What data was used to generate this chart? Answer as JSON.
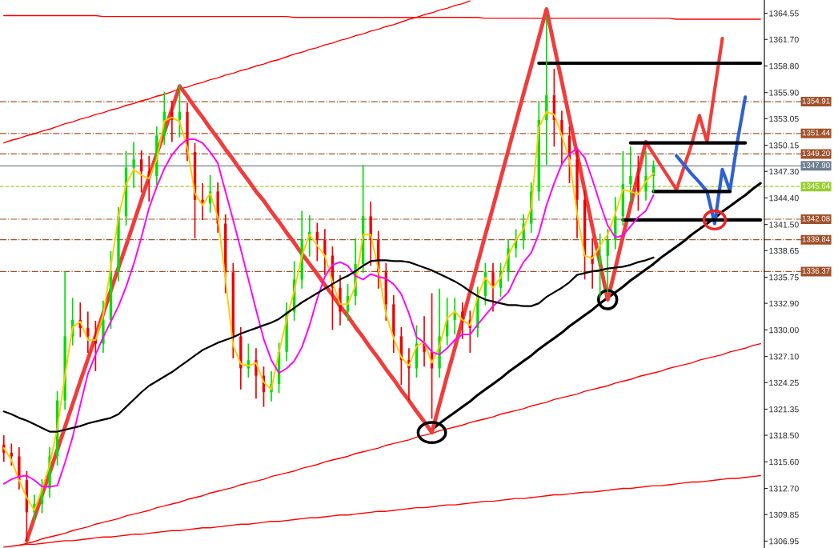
{
  "chart_data": {
    "type": "candlestick",
    "categories": [
      null,
      null,
      null,
      null,
      null,
      null,
      null,
      null,
      null,
      null,
      null,
      null,
      null,
      null,
      null,
      null,
      null,
      null,
      null,
      null,
      null,
      null,
      null,
      null,
      null,
      null,
      null,
      null,
      null,
      null,
      null,
      null,
      null,
      null,
      null,
      null,
      null,
      null,
      null,
      null,
      null,
      null,
      null,
      null,
      null,
      null,
      null,
      null,
      null,
      null,
      null,
      null,
      null,
      null,
      null,
      null,
      null,
      null,
      null,
      null,
      null,
      null,
      null,
      null,
      null,
      null,
      null,
      null,
      null,
      null,
      null,
      null,
      null,
      null,
      null,
      null,
      null,
      null,
      null,
      null,
      null,
      null,
      null,
      null,
      null,
      null,
      null,
      null,
      null,
      null,
      null,
      null,
      null,
      null,
      null,
      null,
      null,
      null,
      null,
      null
    ],
    "ohlc": [
      [
        1317.5,
        1318.5,
        1315.6,
        1316.6
      ],
      [
        1316.6,
        1317.6,
        1315.2,
        1316.2
      ],
      [
        1316.2,
        1317.2,
        1312.6,
        1313.6
      ],
      [
        1313.6,
        1314.6,
        1307.0,
        1310.1
      ],
      [
        1310.1,
        1312.0,
        1309.1,
        1311.0
      ],
      [
        1311.0,
        1313.7,
        1310.0,
        1312.7
      ],
      [
        1312.7,
        1317.2,
        1311.7,
        1316.2
      ],
      [
        1316.2,
        1323.3,
        1315.2,
        1322.3
      ],
      [
        1322.3,
        1336.4,
        1321.3,
        1329.3
      ],
      [
        1329.3,
        1333.5,
        1328.3,
        1331.1
      ],
      [
        1331.1,
        1333.0,
        1329.2,
        1330.2
      ],
      [
        1330.2,
        1332.0,
        1327.5,
        1329.3
      ],
      [
        1329.3,
        1331.0,
        1325.5,
        1328.5
      ],
      [
        1328.5,
        1333.2,
        1327.5,
        1331.1
      ],
      [
        1331.1,
        1338.6,
        1330.1,
        1336.3
      ],
      [
        1336.3,
        1343.4,
        1335.3,
        1342.4
      ],
      [
        1342.4,
        1349.5,
        1341.4,
        1347.7
      ],
      [
        1347.7,
        1350.5,
        1345.5,
        1348.6
      ],
      [
        1348.6,
        1349.6,
        1345.0,
        1347.3
      ],
      [
        1347.3,
        1349.0,
        1344.0,
        1346.8
      ],
      [
        1346.8,
        1352.2,
        1345.8,
        1351.2
      ],
      [
        1351.2,
        1356.0,
        1350.2,
        1353.8
      ],
      [
        1353.8,
        1355.0,
        1350.5,
        1352.9
      ],
      [
        1352.9,
        1356.7,
        1351.0,
        1353.8
      ],
      [
        1353.8,
        1354.8,
        1348.4,
        1349.4
      ],
      [
        1349.4,
        1350.4,
        1340.0,
        1344.2
      ],
      [
        1344.2,
        1346.0,
        1342.0,
        1343.8
      ],
      [
        1343.8,
        1346.9,
        1342.8,
        1345.1
      ],
      [
        1345.1,
        1346.1,
        1340.6,
        1341.6
      ],
      [
        1341.6,
        1342.6,
        1334.0,
        1336.3
      ],
      [
        1336.3,
        1337.3,
        1326.9,
        1329.3
      ],
      [
        1329.3,
        1330.3,
        1323.5,
        1325.8
      ],
      [
        1325.8,
        1328.5,
        1324.8,
        1326.7
      ],
      [
        1326.7,
        1328.0,
        1322.5,
        1325.0
      ],
      [
        1325.0,
        1326.0,
        1321.6,
        1323.2
      ],
      [
        1323.2,
        1325.5,
        1322.2,
        1324.1
      ],
      [
        1324.1,
        1328.6,
        1323.1,
        1327.6
      ],
      [
        1327.6,
        1333.0,
        1326.6,
        1332.0
      ],
      [
        1332.0,
        1337.5,
        1331.0,
        1335.5
      ],
      [
        1335.5,
        1343.0,
        1334.5,
        1339.8
      ],
      [
        1339.8,
        1342.5,
        1338.0,
        1340.7
      ],
      [
        1340.7,
        1341.7,
        1337.5,
        1339.8
      ],
      [
        1339.8,
        1341.0,
        1336.0,
        1338.1
      ],
      [
        1338.1,
        1339.1,
        1330.0,
        1334.6
      ],
      [
        1334.6,
        1336.0,
        1330.5,
        1332.0
      ],
      [
        1332.0,
        1335.0,
        1331.0,
        1333.7
      ],
      [
        1333.7,
        1340.0,
        1332.7,
        1337.2
      ],
      [
        1337.2,
        1348.0,
        1336.2,
        1342.4
      ],
      [
        1342.4,
        1344.0,
        1337.0,
        1339.8
      ],
      [
        1339.8,
        1340.8,
        1334.5,
        1336.3
      ],
      [
        1336.3,
        1337.3,
        1331.0,
        1332.8
      ],
      [
        1332.8,
        1333.8,
        1327.5,
        1329.3
      ],
      [
        1329.3,
        1330.3,
        1324.0,
        1326.7
      ],
      [
        1326.7,
        1328.0,
        1322.3,
        1325.8
      ],
      [
        1325.8,
        1330.5,
        1324.8,
        1328.5
      ],
      [
        1328.5,
        1331.5,
        1326.0,
        1327.6
      ],
      [
        1327.6,
        1334.0,
        1320.3,
        1325.8
      ],
      [
        1325.8,
        1334.5,
        1324.8,
        1329.3
      ],
      [
        1329.3,
        1333.5,
        1328.3,
        1331.1
      ],
      [
        1331.1,
        1333.5,
        1329.5,
        1332.0
      ],
      [
        1332.0,
        1333.0,
        1329.0,
        1331.1
      ],
      [
        1331.1,
        1332.1,
        1327.5,
        1330.2
      ],
      [
        1330.2,
        1334.7,
        1329.2,
        1333.7
      ],
      [
        1333.7,
        1337.3,
        1332.7,
        1336.3
      ],
      [
        1336.3,
        1337.3,
        1332.0,
        1334.6
      ],
      [
        1334.6,
        1337.3,
        1333.6,
        1336.3
      ],
      [
        1336.3,
        1339.9,
        1335.3,
        1338.9
      ],
      [
        1338.9,
        1341.0,
        1337.9,
        1339.8
      ],
      [
        1339.8,
        1342.6,
        1338.8,
        1341.6
      ],
      [
        1341.6,
        1346.1,
        1340.6,
        1345.1
      ],
      [
        1345.1,
        1355.0,
        1344.1,
        1352.9
      ],
      [
        1352.9,
        1364.2,
        1348.0,
        1355.6
      ],
      [
        1355.6,
        1358.5,
        1350.0,
        1352.9
      ],
      [
        1352.9,
        1353.9,
        1348.0,
        1351.2
      ],
      [
        1351.2,
        1352.2,
        1346.0,
        1348.6
      ],
      [
        1348.6,
        1349.6,
        1340.0,
        1344.2
      ],
      [
        1344.2,
        1345.2,
        1335.5,
        1338.1
      ],
      [
        1338.1,
        1340.0,
        1334.5,
        1337.2
      ],
      [
        1337.2,
        1340.5,
        1333.5,
        1338.1
      ],
      [
        1338.1,
        1341.0,
        1334.0,
        1339.8
      ],
      [
        1339.8,
        1344.5,
        1338.8,
        1342.4
      ],
      [
        1342.4,
        1349.5,
        1341.4,
        1345.9
      ],
      [
        1345.9,
        1350.0,
        1344.0,
        1346.8
      ],
      [
        1346.8,
        1349.0,
        1343.0,
        1345.1
      ],
      [
        1345.1,
        1349.5,
        1344.1,
        1346.8
      ],
      [
        1346.8,
        1348.5,
        1345.0,
        1347.9
      ],
      null,
      null,
      null,
      null,
      null,
      null,
      null,
      null,
      null,
      null,
      null,
      null,
      null,
      null
    ],
    "series": [
      {
        "type": "line",
        "color": "#ffcc00",
        "values": [
          1317.1,
          1315.8,
          1313.6,
          1311.7,
          1310.3,
          1312.6,
          1315.3,
          1319.3,
          1325.0,
          1330.3,
          1330.9,
          1328.9,
          1328.9,
          1331.6,
          1336.9,
          1342.3,
          1345.9,
          1347.5,
          1346.9,
          1346.5,
          1348.6,
          1352.8,
          1353.2,
          1352.7,
          1349.9,
          1344.9,
          1343.6,
          1344.9,
          1342.3,
          1335.5,
          1328.3,
          1326.3,
          1326.1,
          1326.4,
          1324.3,
          1323.5,
          1327.6,
          1331.1,
          1334.3,
          1338.1,
          1340.4,
          1339.2,
          1338.1,
          1335.2,
          1332.8,
          1332.8,
          1334.8,
          1340.4,
          1340.4,
          1336.6,
          1331.7,
          1329.1,
          1327.0,
          1326.1,
          1328.2,
          1328.7,
          1326.4,
          1328.2,
          1331.3,
          1332.0,
          1331.1,
          1330.5,
          1333.7,
          1335.7,
          1334.6,
          1335.7,
          1338.1,
          1339.8,
          1341.0,
          1343.3,
          1352.1,
          1353.8,
          1353.5,
          1351.2,
          1348.6,
          1342.7,
          1338.1,
          1337.8,
          1339.2,
          1340.4,
          1342.7,
          1345.3,
          1345.1,
          1344.8,
          1346.2,
          1347.1,
          null,
          null,
          null,
          null,
          null,
          null,
          null,
          null,
          null,
          null,
          null,
          null,
          null,
          null
        ]
      },
      {
        "type": "line",
        "color": "#ff00ff",
        "values": [
          1313.2,
          1313.7,
          1314.0,
          1314.1,
          1313.6,
          1312.9,
          1312.9,
          1313.0,
          1315.5,
          1318.3,
          1321.8,
          1325.2,
          1327.3,
          1329.2,
          1330.9,
          1332.6,
          1334.7,
          1337.2,
          1340.1,
          1343.3,
          1345.6,
          1347.6,
          1349.1,
          1350.1,
          1350.8,
          1350.8,
          1350.4,
          1349.4,
          1348.2,
          1345.1,
          1342.0,
          1338.8,
          1335.5,
          1332.2,
          1329.0,
          1326.7,
          1325.3,
          1325.8,
          1326.6,
          1328.1,
          1330.5,
          1333.4,
          1335.8,
          1337.1,
          1337.4,
          1337.0,
          1335.9,
          1335.5,
          1336.1,
          1335.8,
          1335.6,
          1335.0,
          1333.9,
          1331.8,
          1329.2,
          1328.6,
          1327.6,
          1327.3,
          1328.0,
          1328.9,
          1329.5,
          1329.5,
          1330.6,
          1331.6,
          1332.6,
          1333.3,
          1334.1,
          1335.9,
          1337.4,
          1338.4,
          1340.5,
          1343.6,
          1346.0,
          1348.1,
          1349.2,
          1349.8,
          1348.8,
          1346.4,
          1343.8,
          1341.4,
          1340.1,
          1340.3,
          1341.3,
          1342.3,
          1343.0,
          1344.7,
          null,
          null,
          null,
          null,
          null,
          null,
          null,
          null,
          null,
          null,
          null,
          null,
          null,
          null
        ]
      },
      {
        "type": "line",
        "color": "#000000",
        "values": [
          1321.1,
          1320.8,
          1320.4,
          1320.1,
          1319.7,
          1319.3,
          1318.9,
          1318.9,
          1319.1,
          1319.3,
          1319.5,
          1319.8,
          1320.0,
          1320.2,
          1320.4,
          1320.8,
          1321.6,
          1322.4,
          1323.2,
          1323.9,
          1324.4,
          1324.9,
          1325.4,
          1326.0,
          1326.6,
          1327.2,
          1327.8,
          1328.2,
          1328.6,
          1328.9,
          1329.2,
          1329.6,
          1329.9,
          1330.2,
          1330.5,
          1330.8,
          1331.2,
          1331.8,
          1332.4,
          1333.0,
          1333.5,
          1334.0,
          1334.5,
          1335.0,
          1335.5,
          1335.9,
          1336.4,
          1337.0,
          1337.5,
          1337.6,
          1337.6,
          1337.5,
          1337.5,
          1337.4,
          1337.1,
          1336.8,
          1336.5,
          1336.1,
          1335.7,
          1335.3,
          1334.8,
          1334.2,
          1333.7,
          1333.3,
          1333.1,
          1332.9,
          1332.7,
          1332.7,
          1332.6,
          1332.6,
          1332.9,
          1333.6,
          1334.1,
          1334.6,
          1335.2,
          1336.0,
          1336.2,
          1336.4,
          1336.5,
          1336.7,
          1336.8,
          1336.9,
          1337.1,
          1337.4,
          1337.6,
          1337.9,
          null,
          null,
          null,
          null,
          null,
          null,
          null,
          null,
          null,
          null,
          null,
          null,
          null,
          null
        ]
      },
      {
        "type": "line",
        "color": "#ff0000",
        "values": [
          1350.4,
          1350.7,
          1350.9,
          1351.2,
          1351.4,
          1351.7,
          1351.9,
          1352.2,
          1352.5,
          1352.7,
          1353.0,
          1353.2,
          1353.5,
          1353.7,
          1354.0,
          1354.2,
          1354.5,
          1354.7,
          1355.0,
          1355.2,
          1355.5,
          1355.7,
          1356.0,
          1356.3,
          1356.5,
          1356.8,
          1357.0,
          1357.3,
          1357.5,
          1357.8,
          1358.0,
          1358.3,
          1358.5,
          1358.8,
          1359.0,
          1359.3,
          1359.5,
          1359.8,
          1360.1,
          1360.3,
          1360.6,
          1360.8,
          1361.1,
          1361.3,
          1361.6,
          1361.8,
          1362.1,
          1362.3,
          1362.6,
          1362.8,
          1363.1,
          1363.3,
          1363.6,
          1363.9,
          1364.1,
          1364.4,
          1364.6,
          1364.9,
          1365.1,
          1365.4,
          1365.6,
          1365.9,
          null,
          null,
          null,
          null,
          null,
          null,
          null,
          null,
          null,
          null,
          null,
          null,
          null,
          null,
          null,
          null,
          null,
          null,
          null,
          null,
          null,
          null,
          null,
          null,
          null,
          null,
          null,
          null,
          null,
          null,
          null,
          null,
          null,
          null,
          null,
          null,
          null,
          null
        ]
      },
      {
        "type": "line",
        "color": "#ff0000",
        "values": [
          1364.3,
          1364.3,
          1364.3,
          1364.3,
          1364.3,
          1364.3,
          1364.3,
          1364.3,
          1364.3,
          1364.3,
          1364.3,
          1364.3,
          1364.3,
          1364.2,
          1364.2,
          1364.2,
          1364.2,
          1364.2,
          1364.2,
          1364.2,
          1364.2,
          1364.2,
          1364.2,
          1364.2,
          1364.2,
          1364.2,
          1364.2,
          1364.2,
          1364.2,
          1364.2,
          1364.2,
          1364.2,
          1364.2,
          1364.2,
          1364.2,
          1364.2,
          1364.2,
          1364.2,
          1364.1,
          1364.1,
          1364.1,
          1364.1,
          1364.1,
          1364.1,
          1364.1,
          1364.1,
          1364.1,
          1364.1,
          1364.1,
          1364.1,
          1364.1,
          1364.1,
          1364.1,
          1364.1,
          1364.1,
          1364.1,
          1364.1,
          1364.1,
          1364.1,
          1364.1,
          1364.1,
          1364.1,
          1364.1,
          1364.0,
          1364.0,
          1364.0,
          1364.0,
          1364.0,
          1364.0,
          1364.0,
          1364.0,
          1364.0,
          1364.0,
          1364.0,
          1364.0,
          1364.0,
          1364.0,
          1364.0,
          1364.0,
          1364.0,
          1364.0,
          1364.0,
          1364.0,
          1364.0,
          1364.0,
          1364.0,
          1364.0,
          1364.0,
          1363.9,
          1363.9,
          1363.9,
          1363.9,
          1363.9,
          1363.9,
          1363.9,
          1363.9,
          1363.9,
          1363.9,
          1363.9,
          1363.9
        ]
      },
      {
        "type": "line",
        "color": "#ff0000",
        "values": [
          null,
          null,
          1306.5,
          1306.7,
          1306.9,
          1307.2,
          1307.4,
          1307.6,
          1307.8,
          1308.1,
          1308.3,
          1308.5,
          1308.8,
          1309.0,
          1309.2,
          1309.4,
          1309.7,
          1309.9,
          1310.1,
          1310.3,
          1310.6,
          1310.8,
          1311.0,
          1311.2,
          1311.5,
          1311.7,
          1311.9,
          1312.2,
          1312.4,
          1312.6,
          1312.8,
          1313.1,
          1313.3,
          1313.5,
          1313.7,
          1314.0,
          1314.2,
          1314.4,
          1314.6,
          1314.9,
          1315.1,
          1315.3,
          1315.6,
          1315.8,
          1316.0,
          1316.2,
          1316.5,
          1316.7,
          1316.9,
          1317.1,
          1317.4,
          1317.6,
          1317.8,
          1318.0,
          1318.3,
          1318.5,
          1318.7,
          1319.0,
          1319.2,
          1319.4,
          1319.6,
          1319.9,
          1320.1,
          1320.3,
          1320.5,
          1320.8,
          1321.0,
          1321.2,
          1321.4,
          1321.7,
          1321.9,
          1322.1,
          1322.4,
          1322.6,
          1322.8,
          1323.0,
          1323.3,
          1323.5,
          1323.7,
          1323.9,
          1324.2,
          1324.4,
          1324.6,
          1324.9,
          1325.1,
          1325.3,
          1325.5,
          1325.8,
          1326.0,
          1326.2,
          1326.4,
          1326.7,
          1326.9,
          1327.1,
          1327.3,
          1327.6,
          1327.8,
          1328.0,
          1328.3,
          1328.5
        ]
      },
      {
        "type": "line",
        "color": "#ff0000",
        "values": [
          1306.3,
          1306.4,
          1306.5,
          1306.6,
          1306.6,
          1306.7,
          1306.8,
          1306.9,
          1307.0,
          1307.0,
          1307.1,
          1307.2,
          1307.3,
          1307.4,
          1307.4,
          1307.5,
          1307.6,
          1307.7,
          1307.7,
          1307.8,
          1307.9,
          1308.0,
          1308.1,
          1308.1,
          1308.2,
          1308.3,
          1308.4,
          1308.4,
          1308.5,
          1308.6,
          1308.7,
          1308.8,
          1308.8,
          1308.9,
          1309.0,
          1309.1,
          1309.1,
          1309.2,
          1309.3,
          1309.4,
          1309.5,
          1309.5,
          1309.6,
          1309.7,
          1309.8,
          1309.8,
          1309.9,
          1310.0,
          1310.1,
          1310.2,
          1310.2,
          1310.3,
          1310.4,
          1310.5,
          1310.6,
          1310.6,
          1310.7,
          1310.8,
          1310.9,
          1310.9,
          1311.0,
          1311.1,
          1311.2,
          1311.3,
          1311.3,
          1311.4,
          1311.5,
          1311.6,
          1311.6,
          1311.7,
          1311.8,
          1311.9,
          1312.0,
          1312.0,
          1312.1,
          1312.2,
          1312.3,
          1312.3,
          1312.4,
          1312.5,
          1312.6,
          1312.7,
          1312.7,
          1312.8,
          1312.9,
          1313.0,
          1313.0,
          1313.1,
          1313.2,
          1313.3,
          1313.4,
          1313.4,
          1313.5,
          1313.6,
          1313.7,
          1313.8,
          1313.8,
          1313.9,
          1314.0,
          1314.1
        ]
      },
      {
        "type": "line",
        "color": "#000000",
        "values": [
          null,
          null,
          null,
          null,
          null,
          null,
          null,
          null,
          null,
          null,
          null,
          null,
          null,
          null,
          null,
          null,
          null,
          null,
          null,
          null,
          null,
          null,
          null,
          null,
          null,
          null,
          null,
          null,
          null,
          null,
          null,
          null,
          null,
          null,
          null,
          null,
          null,
          null,
          null,
          null,
          null,
          null,
          null,
          null,
          null,
          null,
          null,
          null,
          null,
          null,
          null,
          null,
          null,
          null,
          null,
          null,
          1319.1,
          1319.8,
          1320.4,
          1321.0,
          1321.6,
          1322.2,
          1322.9,
          1323.5,
          1324.1,
          1324.7,
          1325.4,
          1326.0,
          1326.6,
          1327.2,
          1327.9,
          1328.5,
          1329.1,
          1329.7,
          1330.4,
          1331.0,
          1331.6,
          1332.2,
          1332.9,
          1333.5,
          1334.1,
          1334.7,
          1335.4,
          1336.0,
          1336.6,
          1337.2,
          1337.9,
          1338.5,
          1339.1,
          1339.7,
          1340.4,
          1341.0,
          1341.6,
          1342.2,
          1342.9,
          1343.5,
          1344.1,
          1344.7,
          1345.4,
          1346.0
        ]
      },
      {
        "type": "line",
        "color": "#f03c3c",
        "values": [
          null,
          null,
          null,
          1307.0,
          1309.5,
          1312.0,
          1314.4,
          1316.9,
          1319.4,
          1321.9,
          1324.4,
          1326.8,
          1329.3,
          1331.8,
          1334.3,
          1336.8,
          1339.2,
          1341.7,
          1344.2,
          1346.7,
          1349.2,
          1351.6,
          1354.1,
          1356.6,
          1355.5,
          1354.3,
          1353.2,
          1352.0,
          1350.9,
          1349.7,
          1348.6,
          1347.4,
          1346.3,
          1345.1,
          1344.1,
          1342.9,
          1341.8,
          1340.6,
          1339.5,
          1338.3,
          1337.2,
          1336.1,
          1334.9,
          1333.8,
          1332.6,
          1331.5,
          1330.3,
          1329.2,
          1328.0,
          1326.9,
          1325.7,
          1324.6,
          1323.4,
          1322.3,
          1321.1,
          1320.0,
          1318.8,
          1321.9,
          1325.0,
          1328.0,
          1331.1,
          1334.2,
          1337.3,
          1340.4,
          1343.4,
          1346.5,
          1349.6,
          1352.7,
          1355.8,
          1358.8,
          1361.9,
          1365.0,
          1361.0,
          1357.1,
          1353.1,
          1349.2,
          1345.2,
          1341.2,
          1337.3,
          1333.3,
          1336.7,
          1340.2,
          1343.6,
          1347.1,
          1350.5,
          null,
          null,
          null,
          null,
          null,
          null,
          null,
          null,
          null,
          null,
          null,
          null,
          null,
          null,
          null
        ]
      },
      {
        "type": "line",
        "color": "#f03c3c",
        "values": [
          null,
          null,
          null,
          null,
          null,
          null,
          null,
          null,
          null,
          null,
          null,
          null,
          null,
          null,
          null,
          null,
          null,
          null,
          null,
          null,
          null,
          null,
          null,
          null,
          null,
          null,
          null,
          null,
          null,
          null,
          null,
          null,
          null,
          null,
          null,
          null,
          null,
          null,
          null,
          null,
          null,
          null,
          null,
          null,
          null,
          null,
          null,
          null,
          null,
          null,
          null,
          null,
          null,
          null,
          null,
          null,
          null,
          null,
          null,
          null,
          null,
          null,
          null,
          null,
          null,
          null,
          null,
          null,
          null,
          null,
          null,
          null,
          null,
          null,
          null,
          null,
          null,
          null,
          null,
          null,
          null,
          null,
          null,
          null,
          1350.5,
          1349.2,
          1347.9,
          1346.6,
          1345.3,
          1347.8,
          1350.3,
          1353.4,
          1350.5,
          1356.2,
          1361.8,
          null,
          null,
          null,
          null,
          null
        ]
      },
      {
        "type": "line",
        "color": "#3060d0",
        "values": [
          null,
          null,
          null,
          null,
          null,
          null,
          null,
          null,
          null,
          null,
          null,
          null,
          null,
          null,
          null,
          null,
          null,
          null,
          null,
          null,
          null,
          null,
          null,
          null,
          null,
          null,
          null,
          null,
          null,
          null,
          null,
          null,
          null,
          null,
          null,
          null,
          null,
          null,
          null,
          null,
          null,
          null,
          null,
          null,
          null,
          null,
          null,
          null,
          null,
          null,
          null,
          null,
          null,
          null,
          null,
          null,
          null,
          null,
          null,
          null,
          null,
          null,
          null,
          null,
          null,
          null,
          null,
          null,
          null,
          null,
          null,
          null,
          null,
          null,
          null,
          null,
          null,
          null,
          null,
          null,
          null,
          null,
          null,
          null,
          null,
          null,
          null,
          null,
          1349.0,
          1348.0,
          1347.0,
          1346.1,
          1345.1,
          1341.6,
          1347.5,
          1345.2,
          1350.7,
          1355.4,
          null,
          null
        ]
      },
      {
        "type": "line",
        "color": "#000000",
        "values": [
          null,
          null,
          null,
          null,
          null,
          null,
          null,
          null,
          null,
          null,
          null,
          null,
          null,
          null,
          null,
          null,
          null,
          null,
          null,
          null,
          null,
          null,
          null,
          null,
          null,
          null,
          null,
          null,
          null,
          null,
          null,
          null,
          null,
          null,
          null,
          null,
          null,
          null,
          null,
          null,
          null,
          null,
          null,
          null,
          null,
          null,
          null,
          null,
          null,
          null,
          null,
          null,
          null,
          null,
          null,
          null,
          null,
          null,
          null,
          null,
          null,
          null,
          null,
          null,
          null,
          null,
          null,
          null,
          null,
          null,
          1359.1,
          1359.1,
          1359.1,
          1359.1,
          1359.1,
          1359.1,
          1359.1,
          1359.1,
          1359.1,
          1359.1,
          1359.1,
          1359.1,
          1359.1,
          1359.1,
          1359.1,
          1359.1,
          1359.1,
          1359.1,
          1359.1,
          1359.1,
          1359.1,
          1359.1,
          1359.1,
          1359.1,
          1359.1,
          1359.1,
          1359.1,
          1359.1,
          1359.1,
          1359.1
        ]
      },
      {
        "type": "line",
        "color": "#000000",
        "values": [
          null,
          null,
          null,
          null,
          null,
          null,
          null,
          null,
          null,
          null,
          null,
          null,
          null,
          null,
          null,
          null,
          null,
          null,
          null,
          null,
          null,
          null,
          null,
          null,
          null,
          null,
          null,
          null,
          null,
          null,
          null,
          null,
          null,
          null,
          null,
          null,
          null,
          null,
          null,
          null,
          null,
          null,
          null,
          null,
          null,
          null,
          null,
          null,
          null,
          null,
          null,
          null,
          null,
          null,
          null,
          null,
          null,
          null,
          null,
          null,
          null,
          null,
          null,
          null,
          null,
          null,
          null,
          null,
          null,
          null,
          null,
          null,
          null,
          null,
          null,
          null,
          null,
          null,
          null,
          null,
          null,
          null,
          1350.4,
          1350.4,
          1350.4,
          1350.4,
          1350.4,
          1350.4,
          1350.4,
          1350.4,
          1350.4,
          1350.4,
          1350.4,
          1350.4,
          1350.4,
          1350.4,
          1350.4,
          1350.4,
          null,
          null
        ]
      },
      {
        "type": "line",
        "color": "#000000",
        "values": [
          null,
          null,
          null,
          null,
          null,
          null,
          null,
          null,
          null,
          null,
          null,
          null,
          null,
          null,
          null,
          null,
          null,
          null,
          null,
          null,
          null,
          null,
          null,
          null,
          null,
          null,
          null,
          null,
          null,
          null,
          null,
          null,
          null,
          null,
          null,
          null,
          null,
          null,
          null,
          null,
          null,
          null,
          null,
          null,
          null,
          null,
          null,
          null,
          null,
          null,
          null,
          null,
          null,
          null,
          null,
          null,
          null,
          null,
          null,
          null,
          null,
          null,
          null,
          null,
          null,
          null,
          null,
          null,
          null,
          null,
          null,
          null,
          null,
          null,
          null,
          null,
          null,
          null,
          null,
          null,
          null,
          null,
          null,
          null,
          null,
          1345.1,
          1345.1,
          1345.1,
          1345.1,
          1345.1,
          1345.1,
          1345.1,
          1345.1,
          1345.1,
          1345.1,
          1345.1,
          null,
          null,
          null,
          null
        ]
      },
      {
        "type": "line",
        "color": "#000000",
        "values": [
          null,
          null,
          null,
          null,
          null,
          null,
          null,
          null,
          null,
          null,
          null,
          null,
          null,
          null,
          null,
          null,
          null,
          null,
          null,
          null,
          null,
          null,
          null,
          null,
          null,
          null,
          null,
          null,
          null,
          null,
          null,
          null,
          null,
          null,
          null,
          null,
          null,
          null,
          null,
          null,
          null,
          null,
          null,
          null,
          null,
          null,
          null,
          null,
          null,
          null,
          null,
          null,
          null,
          null,
          null,
          null,
          null,
          null,
          null,
          null,
          null,
          null,
          null,
          null,
          null,
          null,
          null,
          null,
          null,
          null,
          null,
          null,
          null,
          null,
          null,
          null,
          null,
          null,
          null,
          null,
          null,
          1342.0,
          1342.0,
          1342.0,
          1342.0,
          1342.0,
          1342.0,
          1342.0,
          1342.0,
          1342.0,
          1342.0,
          1342.0,
          1342.0,
          1342.0,
          1342.0,
          1342.0,
          1342.0,
          1342.0,
          1342.0,
          1342.0
        ]
      }
    ],
    "ylim": [
      1306.2,
      1366.0
    ],
    "yticks": [
      1306.95,
      1309.85,
      {
        "value": 1312.7,
        "label": "1312.70"
      },
      {
        "value": 1315.6,
        "label": "1315.60"
      },
      {
        "value": 1318.5,
        "label": "1318.50"
      },
      1321.35,
      1324.25,
      {
        "value": 1327.1,
        "label": "1327.10"
      },
      {
        "value": 1330.0,
        "label": "1330.00"
      },
      {
        "value": 1332.9,
        "label": "1332.90"
      },
      1335.75,
      1338.65,
      {
        "value": 1341.5,
        "label": "1341.50"
      },
      {
        "value": 1344.4,
        "label": "1344.40"
      },
      {
        "value": 1347.3,
        "label": "1347.30"
      },
      1350.15,
      1353.05,
      {
        "value": 1355.9,
        "label": "1355.90"
      },
      {
        "value": 1358.8,
        "label": "1358.80"
      },
      {
        "value": 1361.7,
        "label": "1361.70"
      },
      1364.55
    ],
    "ref_lines": [
      {
        "axis": "y",
        "value": 1354.91,
        "label": "1354.91",
        "color": "#a0522d",
        "line_style": "dashdot"
      },
      {
        "axis": "y",
        "value": 1351.44,
        "label": "1351.44",
        "color": "#a0522d",
        "line_style": "dashdot"
      },
      {
        "axis": "y",
        "value": 1349.2,
        "label": "1349.20",
        "color": "#a0522d",
        "line_style": "dashdot"
      },
      {
        "axis": "y",
        "value": 1347.9,
        "label": "1347.90",
        "color": "#708090",
        "line_style": "solid"
      },
      {
        "axis": "y",
        "value": 1345.64,
        "label": "1345.64",
        "color": "#9acd32",
        "line_style": "dashed"
      },
      {
        "axis": "y",
        "value": 1342.08,
        "label": "1342.08",
        "color": "#a0522d",
        "line_style": "dashdot"
      },
      {
        "axis": "y",
        "value": 1339.84,
        "label": "1339.84",
        "color": "#a0522d",
        "line_style": "dashdot"
      },
      {
        "axis": "y",
        "value": 1336.37,
        "label": "1336.37",
        "color": "#a0522d",
        "line_style": "dashdot"
      }
    ],
    "tick_labels": "y",
    "grid": false
  }
}
